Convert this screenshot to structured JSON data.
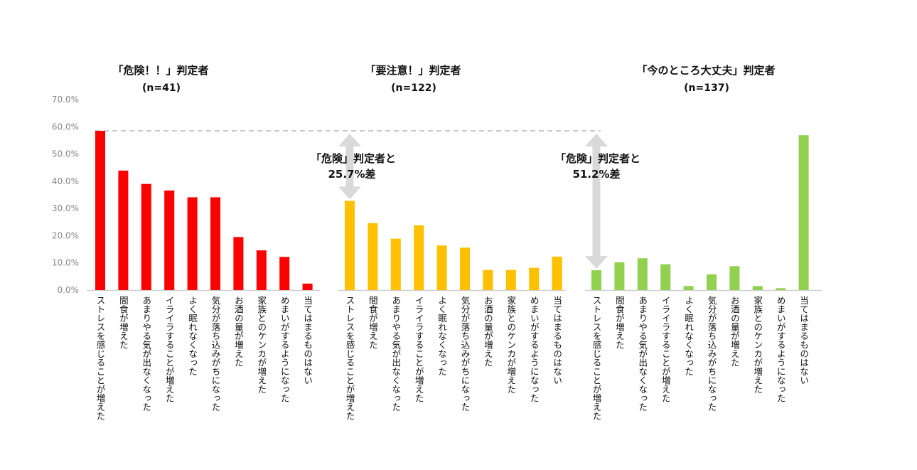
{
  "chart_data": {
    "type": "bar",
    "y_axis": {
      "min": 0,
      "max": 70,
      "ticks": [
        0,
        10,
        20,
        30,
        40,
        50,
        60,
        70
      ],
      "tick_labels": [
        "0.0%",
        "10.0%",
        "20.0%",
        "30.0%",
        "40.0%",
        "50.0%",
        "60.0%",
        "70.0%"
      ]
    },
    "grid": false,
    "categories": [
      "ストレスを感じることが増えた",
      "間食が増えた",
      "あまりやる気が出なくなった",
      "イライラすることが増えた",
      "よく眠れなくなった",
      "気分が落ち込みがちになった",
      "お酒の量が増えた",
      "家族とのケンカが増えた",
      "めまいがするようになった",
      "当てはまるものはない"
    ],
    "groups": [
      {
        "title": "「危険！！」判定者",
        "n_label": "(n=41)",
        "color": "#ff0000",
        "values": [
          58.5,
          43.9,
          39.0,
          36.6,
          34.1,
          34.1,
          19.5,
          14.6,
          12.2,
          2.4
        ]
      },
      {
        "title": "「要注意！」判定者",
        "n_label": "(n=122)",
        "color": "#ffc000",
        "values": [
          32.8,
          24.6,
          18.9,
          23.8,
          16.4,
          15.6,
          7.4,
          7.4,
          8.2,
          12.3
        ]
      },
      {
        "title": "「今のところ大丈夫」判定者",
        "n_label": "(n=137)",
        "color": "#92d050",
        "values": [
          7.3,
          10.2,
          11.7,
          9.5,
          1.5,
          5.8,
          8.8,
          1.5,
          0.7,
          56.9
        ]
      }
    ],
    "annotations": [
      {
        "line1": "「危険」判定者と",
        "line2": "25.7%差",
        "from_value": 58.5,
        "to_value": 32.8
      },
      {
        "line1": "「危険」判定者と",
        "line2": "51.2%差",
        "from_value": 58.5,
        "to_value": 7.3
      }
    ]
  }
}
